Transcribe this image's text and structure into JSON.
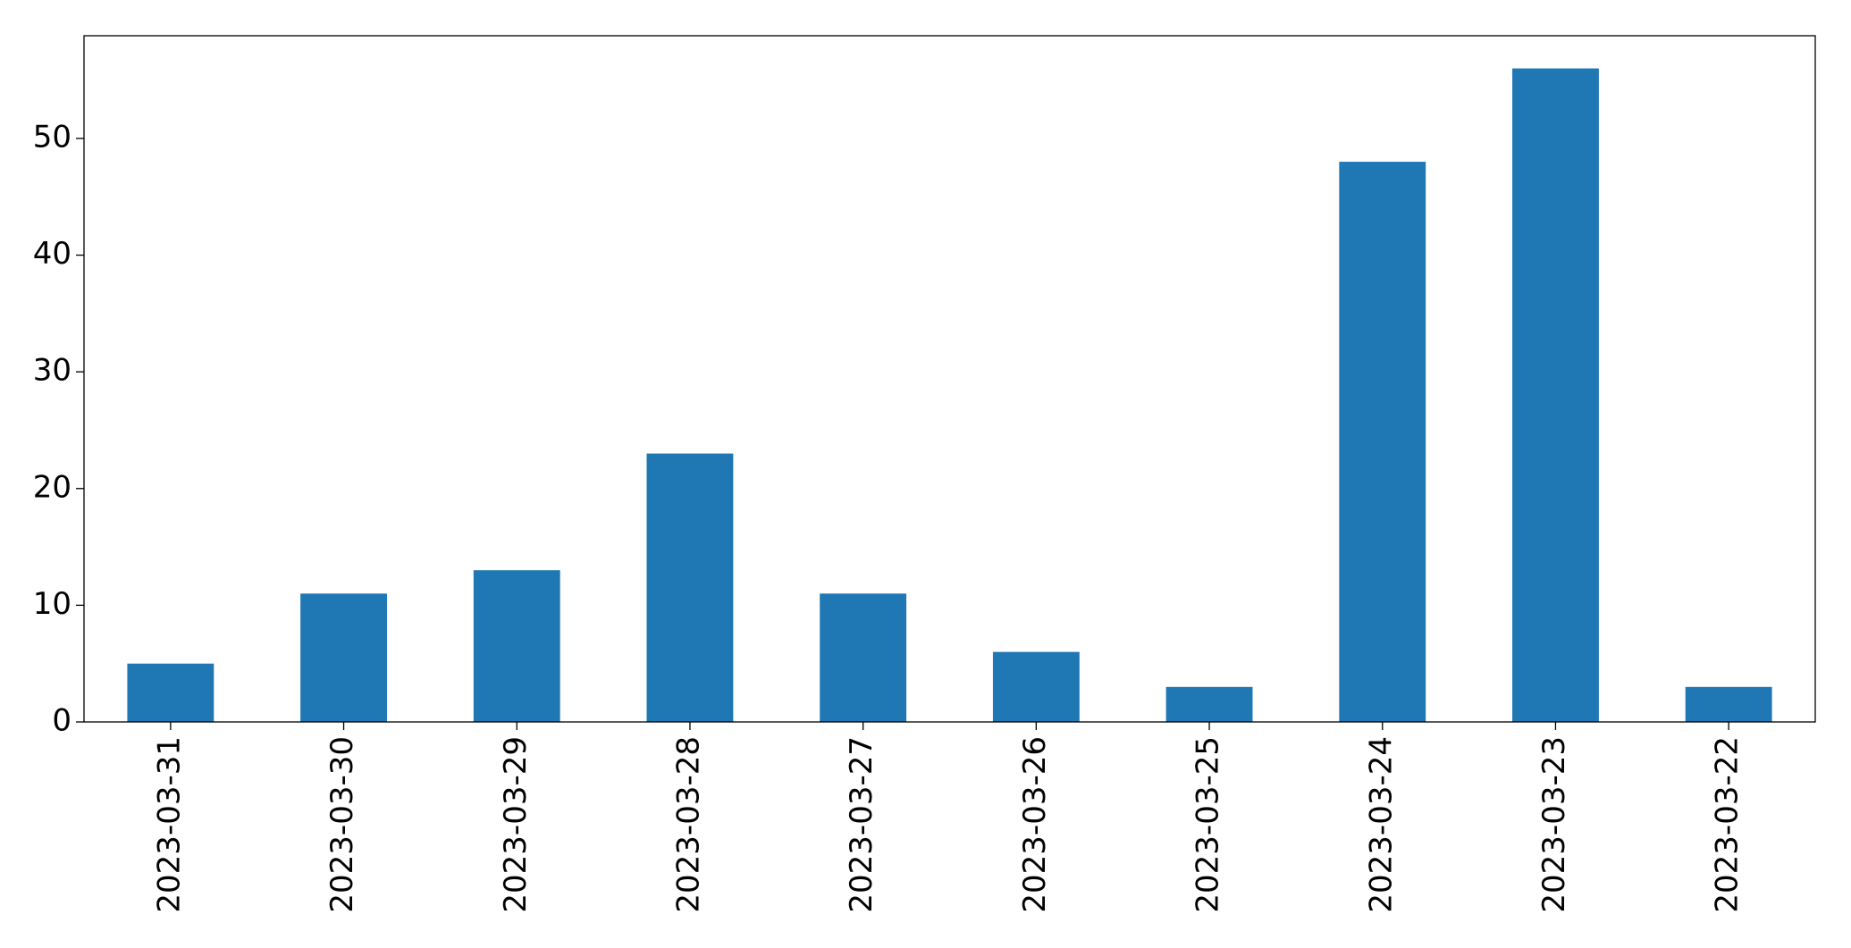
{
  "chart_data": {
    "type": "bar",
    "categories": [
      "2023-03-31",
      "2023-03-30",
      "2023-03-29",
      "2023-03-28",
      "2023-03-27",
      "2023-03-26",
      "2023-03-25",
      "2023-03-24",
      "2023-03-23",
      "2023-03-22"
    ],
    "values": [
      5,
      11,
      13,
      23,
      11,
      6,
      3,
      48,
      56,
      3
    ],
    "color": "#1f77b4",
    "ylim": [
      0,
      58.8
    ],
    "yticks": [
      0,
      10,
      20,
      30,
      40,
      50
    ],
    "grid": false
  }
}
